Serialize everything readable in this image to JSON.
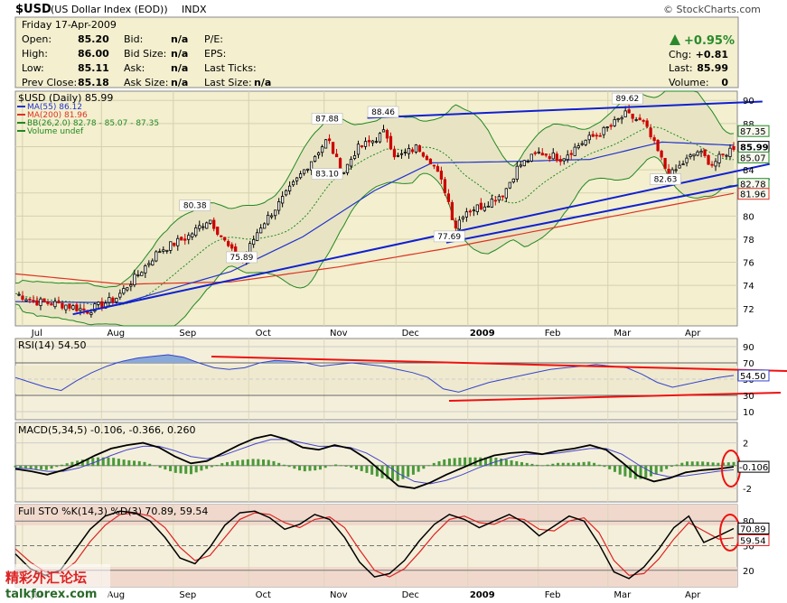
{
  "header": {
    "symbol": "$USD",
    "name": "(US Dollar Index (EOD))",
    "exchange": "INDX",
    "brand": "© StockCharts.com",
    "date": "Friday   17-Apr-2009",
    "quote": {
      "open_label": "Open:",
      "open": "85.20",
      "high_label": "High:",
      "high": "86.00",
      "low_label": "Low:",
      "low": "85.11",
      "prev_label": "Prev Close:",
      "prev": "85.18",
      "bid_label": "Bid:",
      "bid": "n/a",
      "bidsize_label": "Bid Size:",
      "bidsize": "n/a",
      "ask_label": "Ask:",
      "ask": "n/a",
      "asksize_label": "Ask Size:",
      "asksize": "n/a",
      "pe_label": "P/E:",
      "eps_label": "EPS:",
      "lastticks_label": "Last Ticks:",
      "lastsize_label": "Last Size:",
      "lastsize": "n/a",
      "pct": "+0.95%",
      "chg_label": "Chg:",
      "chg": "+0.81",
      "last_label": "Last:",
      "last": "85.99",
      "volume_label": "Volume:",
      "volume": "0"
    }
  },
  "colors": {
    "panel_bg": "#f3efcf",
    "osc_bg": "#f4efda",
    "band_fill": "#e8e4c3",
    "up": "#000000",
    "down": "#cc0000",
    "ma55": "#2233cc",
    "ma200": "#dd3322",
    "bb": "#228822",
    "trend": "#1020d0",
    "red_line": "#ee1111"
  },
  "chart_data": [
    {
      "type": "candlestick",
      "title": "$USD (Daily) 85.99",
      "legend": [
        {
          "name": "MA(55) 86.12",
          "color": "#2233cc"
        },
        {
          "name": "MA(200) 81.96",
          "color": "#dd3322"
        },
        {
          "name": "BB(26,2.0) 82.78 - 85.07 - 87.35",
          "color": "#228822"
        },
        {
          "name": "Volume undef",
          "color": "#228822"
        }
      ],
      "x_ticks": [
        "Jul",
        "Aug",
        "Sep",
        "Oct",
        "Nov",
        "Dec",
        "2009",
        "Feb",
        "Mar",
        "Apr"
      ],
      "y_ticks": [
        72,
        74,
        76,
        78,
        80,
        82,
        84,
        86,
        88,
        90
      ],
      "ylim": [
        70.5,
        90.8
      ],
      "right_labels": [
        {
          "text": "87.35",
          "y": 87.35
        },
        {
          "text": "85.99",
          "y": 85.99
        },
        {
          "text": "85.07",
          "y": 85.07
        },
        {
          "text": "82.78",
          "y": 82.78
        },
        {
          "text": "81.96",
          "y": 81.96
        }
      ],
      "annotations": [
        {
          "text": "75.89",
          "x": 0.315,
          "y": 75.89
        },
        {
          "text": "80.38",
          "x": 0.25,
          "y": 80.38
        },
        {
          "text": "87.88",
          "x": 0.434,
          "y": 87.88
        },
        {
          "text": "83.10",
          "x": 0.434,
          "y": 83.1
        },
        {
          "text": "88.46",
          "x": 0.512,
          "y": 88.46
        },
        {
          "text": "77.69",
          "x": 0.604,
          "y": 77.69
        },
        {
          "text": "89.62",
          "x": 0.852,
          "y": 89.62
        },
        {
          "text": "82.63",
          "x": 0.905,
          "y": 82.63
        }
      ],
      "series_anchors": [
        {
          "x": 0.0,
          "y": 73.3
        },
        {
          "x": 0.03,
          "y": 72.6
        },
        {
          "x": 0.07,
          "y": 72.3
        },
        {
          "x": 0.1,
          "y": 71.8
        },
        {
          "x": 0.14,
          "y": 72.9
        },
        {
          "x": 0.17,
          "y": 74.9
        },
        {
          "x": 0.2,
          "y": 77.0
        },
        {
          "x": 0.24,
          "y": 78.2
        },
        {
          "x": 0.27,
          "y": 79.8
        },
        {
          "x": 0.3,
          "y": 77.0
        },
        {
          "x": 0.315,
          "y": 76.0
        },
        {
          "x": 0.34,
          "y": 79.0
        },
        {
          "x": 0.37,
          "y": 81.3
        },
        {
          "x": 0.4,
          "y": 83.8
        },
        {
          "x": 0.42,
          "y": 85.5
        },
        {
          "x": 0.435,
          "y": 86.7
        },
        {
          "x": 0.455,
          "y": 83.6
        },
        {
          "x": 0.475,
          "y": 85.8
        },
        {
          "x": 0.5,
          "y": 86.6
        },
        {
          "x": 0.515,
          "y": 87.3
        },
        {
          "x": 0.53,
          "y": 85.0
        },
        {
          "x": 0.56,
          "y": 86.0
        },
        {
          "x": 0.58,
          "y": 84.7
        },
        {
          "x": 0.6,
          "y": 82.0
        },
        {
          "x": 0.612,
          "y": 79.0
        },
        {
          "x": 0.625,
          "y": 80.4
        },
        {
          "x": 0.65,
          "y": 80.9
        },
        {
          "x": 0.68,
          "y": 82.0
        },
        {
          "x": 0.7,
          "y": 84.3
        },
        {
          "x": 0.73,
          "y": 85.5
        },
        {
          "x": 0.76,
          "y": 85.0
        },
        {
          "x": 0.79,
          "y": 86.4
        },
        {
          "x": 0.82,
          "y": 87.4
        },
        {
          "x": 0.85,
          "y": 88.8
        },
        {
          "x": 0.875,
          "y": 88.0
        },
        {
          "x": 0.895,
          "y": 85.5
        },
        {
          "x": 0.91,
          "y": 83.4
        },
        {
          "x": 0.93,
          "y": 84.6
        },
        {
          "x": 0.95,
          "y": 85.6
        },
        {
          "x": 0.97,
          "y": 84.5
        },
        {
          "x": 1.0,
          "y": 85.99
        }
      ],
      "ma55": [
        {
          "x": 0.0,
          "y": 72.6
        },
        {
          "x": 0.15,
          "y": 72.5
        },
        {
          "x": 0.3,
          "y": 75.2
        },
        {
          "x": 0.4,
          "y": 78.2
        },
        {
          "x": 0.5,
          "y": 82.2
        },
        {
          "x": 0.58,
          "y": 84.6
        },
        {
          "x": 0.68,
          "y": 84.7
        },
        {
          "x": 0.8,
          "y": 84.9
        },
        {
          "x": 0.9,
          "y": 86.4
        },
        {
          "x": 1.0,
          "y": 86.12
        }
      ],
      "ma200": [
        {
          "x": 0.0,
          "y": 75.0
        },
        {
          "x": 0.15,
          "y": 74.1
        },
        {
          "x": 0.3,
          "y": 74.3
        },
        {
          "x": 0.45,
          "y": 75.6
        },
        {
          "x": 0.6,
          "y": 77.2
        },
        {
          "x": 0.75,
          "y": 79.0
        },
        {
          "x": 0.9,
          "y": 80.8
        },
        {
          "x": 1.0,
          "y": 81.96
        }
      ],
      "trendlines": [
        {
          "from": {
            "x": 0.08,
            "y": 71.5
          },
          "to": {
            "x": 1.05,
            "y": 84.5
          }
        },
        {
          "from": {
            "x": 0.6,
            "y": 77.7
          },
          "to": {
            "x": 1.05,
            "y": 83.2
          }
        },
        {
          "from": {
            "x": 0.49,
            "y": 88.5
          },
          "to": {
            "x": 1.04,
            "y": 89.9
          }
        }
      ]
    },
    {
      "type": "line",
      "title": "RSI(14) 54.50",
      "y_ticks": [
        10,
        30,
        50,
        70,
        90
      ],
      "ylim": [
        0,
        100
      ],
      "right_label": "54.50",
      "values": [
        52,
        46,
        40,
        36,
        48,
        58,
        66,
        72,
        76,
        78,
        80,
        77,
        70,
        64,
        62,
        64,
        70,
        73,
        72,
        70,
        66,
        68,
        70,
        68,
        66,
        62,
        58,
        52,
        38,
        34,
        40,
        46,
        50,
        54,
        58,
        62,
        64,
        66,
        68,
        66,
        64,
        56,
        46,
        40,
        44,
        48,
        52,
        54.5
      ]
    },
    {
      "type": "line",
      "title": "MACD(5,34,5) -0.106, -0.366, 0.260",
      "y_ticks": [
        -2,
        0,
        2
      ],
      "ylim": [
        -3.2,
        3.8
      ],
      "right_label": "-0.106",
      "series": [
        {
          "name": "MACD",
          "values": [
            -0.3,
            -0.5,
            -0.8,
            -0.4,
            0.2,
            0.9,
            1.5,
            1.8,
            2.0,
            1.6,
            0.8,
            0.2,
            0.4,
            1.1,
            1.8,
            2.4,
            2.7,
            2.3,
            1.6,
            1.4,
            1.8,
            1.5,
            0.6,
            -0.6,
            -1.8,
            -2.0,
            -1.5,
            -0.8,
            -0.2,
            0.4,
            0.9,
            1.1,
            1.2,
            1.0,
            1.3,
            1.5,
            1.8,
            1.4,
            0.3,
            -0.9,
            -1.4,
            -1.1,
            -0.6,
            -0.4,
            -0.3,
            -0.106
          ]
        },
        {
          "name": "Signal",
          "values": [
            -0.2,
            -0.3,
            -0.5,
            -0.5,
            -0.2,
            0.3,
            0.9,
            1.4,
            1.7,
            1.7,
            1.3,
            0.8,
            0.6,
            0.9,
            1.4,
            1.9,
            2.3,
            2.3,
            2.0,
            1.7,
            1.7,
            1.6,
            1.1,
            0.3,
            -0.7,
            -1.4,
            -1.6,
            -1.3,
            -0.8,
            -0.2,
            0.3,
            0.7,
            1.0,
            1.0,
            1.1,
            1.3,
            1.5,
            1.5,
            1.0,
            0.1,
            -0.7,
            -1.0,
            -0.9,
            -0.7,
            -0.5,
            -0.366
          ]
        }
      ]
    },
    {
      "type": "line",
      "title": "Full STO %K(14,3) %D(3) 70.89, 59.54",
      "y_ticks": [
        20,
        50,
        80
      ],
      "ylim": [
        0,
        100
      ],
      "right_labels": [
        "70.89",
        "59.54"
      ],
      "series": [
        {
          "name": "%K",
          "values": [
            40,
            22,
            14,
            20,
            45,
            70,
            86,
            92,
            90,
            80,
            60,
            35,
            28,
            48,
            75,
            90,
            92,
            84,
            70,
            76,
            88,
            82,
            60,
            30,
            12,
            16,
            32,
            56,
            76,
            88,
            82,
            72,
            80,
            88,
            78,
            62,
            74,
            86,
            80,
            52,
            18,
            10,
            24,
            46,
            72,
            86,
            54,
            62,
            70.89
          ]
        },
        {
          "name": "%D",
          "values": [
            46,
            30,
            18,
            16,
            30,
            55,
            75,
            88,
            90,
            86,
            72,
            48,
            32,
            38,
            60,
            82,
            90,
            88,
            78,
            72,
            82,
            85,
            72,
            45,
            20,
            12,
            22,
            42,
            64,
            82,
            86,
            78,
            76,
            84,
            82,
            70,
            68,
            80,
            84,
            66,
            32,
            14,
            16,
            34,
            58,
            78,
            68,
            58,
            59.54
          ]
        }
      ]
    }
  ]
}
